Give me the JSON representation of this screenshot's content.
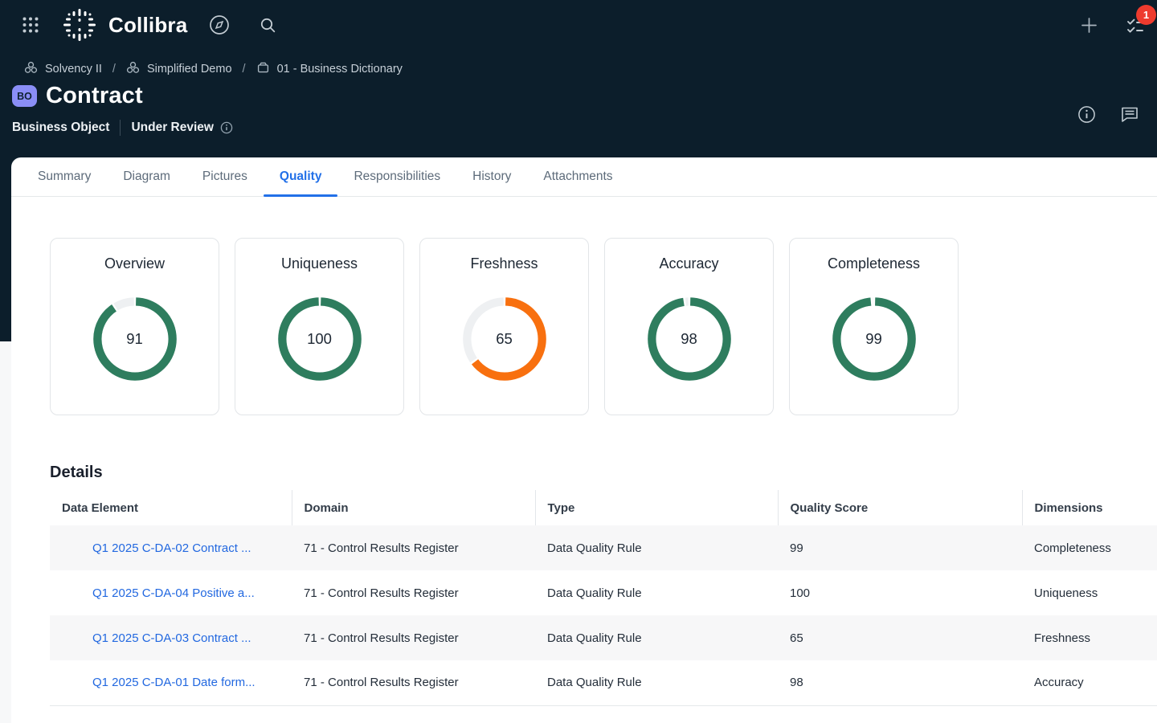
{
  "topbar": {
    "brand": "Collibra",
    "notification_count": "1"
  },
  "breadcrumb": {
    "separator": "/",
    "items": [
      {
        "label": "Solvency II",
        "icon": "community"
      },
      {
        "label": "Simplified Demo",
        "icon": "community"
      },
      {
        "label": "01 - Business Dictionary",
        "icon": "domain"
      }
    ]
  },
  "header": {
    "badge": "BO",
    "title": "Contract",
    "asset_type": "Business Object",
    "status": "Under Review"
  },
  "tabs": {
    "active": "Quality",
    "items": [
      "Summary",
      "Diagram",
      "Pictures",
      "Quality",
      "Responsibilities",
      "History",
      "Attachments"
    ]
  },
  "chart_data": {
    "type": "donut-gauges",
    "track_color": "#eef0f2",
    "value_range": [
      0,
      100
    ],
    "gauges": [
      {
        "title": "Overview",
        "value": 91,
        "color": "#2e7d5e"
      },
      {
        "title": "Uniqueness",
        "value": 100,
        "color": "#2e7d5e"
      },
      {
        "title": "Freshness",
        "value": 65,
        "color": "#f8700f"
      },
      {
        "title": "Accuracy",
        "value": 98,
        "color": "#2e7d5e"
      },
      {
        "title": "Completeness",
        "value": 99,
        "color": "#2e7d5e"
      }
    ]
  },
  "details": {
    "heading": "Details",
    "columns": [
      "Data Element",
      "Domain",
      "Type",
      "Quality Score",
      "Dimensions"
    ],
    "rows": [
      {
        "data_element": "Q1 2025 C-DA-02 Contract ...",
        "domain": "71 - Control Results Register",
        "type": "Data Quality Rule",
        "quality_score": "99",
        "dimensions": "Completeness"
      },
      {
        "data_element": "Q1 2025 C-DA-04 Positive a...",
        "domain": "71 - Control Results Register",
        "type": "Data Quality Rule",
        "quality_score": "100",
        "dimensions": "Uniqueness"
      },
      {
        "data_element": "Q1 2025 C-DA-03 Contract ...",
        "domain": "71 - Control Results Register",
        "type": "Data Quality Rule",
        "quality_score": "65",
        "dimensions": "Freshness"
      },
      {
        "data_element": "Q1 2025 C-DA-01 Date form...",
        "domain": "71 - Control Results Register",
        "type": "Data Quality Rule",
        "quality_score": "98",
        "dimensions": "Accuracy"
      }
    ]
  }
}
